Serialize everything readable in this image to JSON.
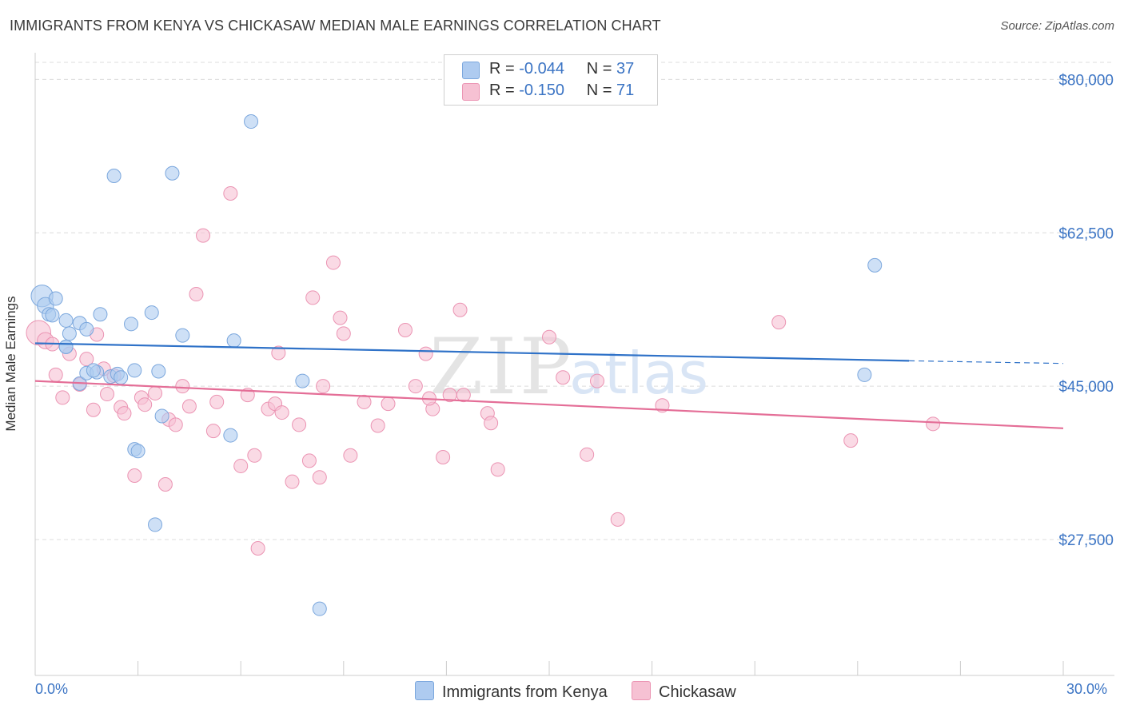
{
  "title": "IMMIGRANTS FROM KENYA VS CHICKASAW MEDIAN MALE EARNINGS CORRELATION CHART",
  "source": "Source: ZipAtlas.com",
  "watermark": {
    "zip": "ZIP",
    "atlas": "atlas"
  },
  "legend": {
    "rows": [
      {
        "r_label": "R =",
        "r_value": "-0.044",
        "n_label": "N =",
        "n_value": "37"
      },
      {
        "r_label": "R =",
        "r_value": "-0.150",
        "n_label": "N =",
        "n_value": "71"
      }
    ]
  },
  "bottom_legend": {
    "series1": "Immigrants from Kenya",
    "series2": "Chickasaw"
  },
  "colors": {
    "blue_fill": "#aecbf0",
    "blue_stroke": "#7ba7dd",
    "blue_line": "#2f72c8",
    "pink_fill": "#f6c1d3",
    "pink_stroke": "#eb94b3",
    "pink_line": "#e46e97",
    "axis_text": "#3b74c4"
  },
  "chart_data": {
    "type": "scatter",
    "title": "IMMIGRANTS FROM KENYA VS CHICKASAW MEDIAN MALE EARNINGS CORRELATION CHART",
    "xlabel": "",
    "ylabel": "Median Male Earnings",
    "xlim": [
      0,
      30
    ],
    "ylim": [
      12000,
      82500
    ],
    "x_tick_labels": [
      "0.0%",
      "30.0%"
    ],
    "y_ticks": [
      27500,
      45000,
      62500,
      80000
    ],
    "y_tick_labels": [
      "$27,500",
      "$45,000",
      "$62,500",
      "$80,000"
    ],
    "legend_position": "top-center",
    "series": [
      {
        "name": "Immigrants from Kenya",
        "r": -0.044,
        "n": 37,
        "trend": {
          "x": [
            0,
            25.5
          ],
          "y": [
            49900,
            47900
          ],
          "dashed_to": [
            30,
            47600
          ]
        },
        "points": [
          [
            0.2,
            55300,
            1.6
          ],
          [
            0.3,
            54200,
            1.2
          ],
          [
            0.4,
            53200,
            1.0
          ],
          [
            0.6,
            55000,
            1.0
          ],
          [
            0.5,
            53100,
            1.0
          ],
          [
            0.9,
            52500,
            1.0
          ],
          [
            0.9,
            49500,
            1.0
          ],
          [
            1.0,
            51000,
            1.0
          ],
          [
            1.3,
            52200,
            1.0
          ],
          [
            1.5,
            51500,
            1.0
          ],
          [
            1.9,
            53200,
            1.0
          ],
          [
            1.3,
            45300,
            1.0
          ],
          [
            1.5,
            46500,
            1.0
          ],
          [
            1.8,
            46600,
            1.0
          ],
          [
            2.2,
            46100,
            1.0
          ],
          [
            2.4,
            46400,
            1.0
          ],
          [
            2.5,
            46000,
            1.0
          ],
          [
            2.8,
            52100,
            1.0
          ],
          [
            2.9,
            46800,
            1.0
          ],
          [
            3.4,
            53400,
            1.0
          ],
          [
            3.6,
            46700,
            1.0
          ],
          [
            2.3,
            69000,
            1.0
          ],
          [
            4.0,
            69300,
            1.0
          ],
          [
            6.3,
            75200,
            1.0
          ],
          [
            4.3,
            50800,
            1.0
          ],
          [
            5.8,
            50200,
            1.0
          ],
          [
            3.7,
            41600,
            1.0
          ],
          [
            5.7,
            39400,
            1.0
          ],
          [
            2.9,
            37800,
            1.0
          ],
          [
            3.0,
            37600,
            1.0
          ],
          [
            3.5,
            29200,
            1.0
          ],
          [
            7.8,
            45600,
            1.0
          ],
          [
            8.3,
            19600,
            1.0
          ],
          [
            24.5,
            58800,
            1.0
          ],
          [
            24.2,
            46300,
            1.0
          ],
          [
            0.9,
            49500,
            1.0
          ],
          [
            1.7,
            46800,
            1.0
          ]
        ]
      },
      {
        "name": "Chickasaw",
        "r": -0.15,
        "n": 71,
        "trend": {
          "x": [
            0,
            30
          ],
          "y": [
            45600,
            40200
          ]
        },
        "points": [
          [
            0.1,
            51100,
            1.8
          ],
          [
            0.3,
            50200,
            1.2
          ],
          [
            0.5,
            49800,
            1.0
          ],
          [
            0.6,
            46300,
            1.0
          ],
          [
            0.8,
            43700,
            1.0
          ],
          [
            1.0,
            48700,
            1.0
          ],
          [
            1.3,
            45200,
            1.0
          ],
          [
            1.5,
            48100,
            1.0
          ],
          [
            1.7,
            42300,
            1.0
          ],
          [
            1.8,
            50900,
            1.0
          ],
          [
            2.1,
            44100,
            1.0
          ],
          [
            2.3,
            46200,
            1.0
          ],
          [
            2.5,
            42600,
            1.0
          ],
          [
            2.6,
            41900,
            1.0
          ],
          [
            2.9,
            34800,
            1.0
          ],
          [
            3.1,
            43700,
            1.0
          ],
          [
            3.2,
            42900,
            1.0
          ],
          [
            3.5,
            44200,
            1.0
          ],
          [
            3.8,
            33800,
            1.0
          ],
          [
            3.9,
            41200,
            1.0
          ],
          [
            4.1,
            40600,
            1.0
          ],
          [
            4.3,
            45000,
            1.0
          ],
          [
            4.5,
            42700,
            1.0
          ],
          [
            4.7,
            55500,
            1.0
          ],
          [
            4.9,
            62200,
            1.0
          ],
          [
            5.2,
            39900,
            1.0
          ],
          [
            5.3,
            43200,
            1.0
          ],
          [
            5.7,
            67000,
            1.0
          ],
          [
            6.0,
            35900,
            1.0
          ],
          [
            6.2,
            44000,
            1.0
          ],
          [
            6.4,
            37100,
            1.0
          ],
          [
            6.5,
            26500,
            1.0
          ],
          [
            6.8,
            42400,
            1.0
          ],
          [
            7.0,
            43000,
            1.0
          ],
          [
            7.1,
            48800,
            1.0
          ],
          [
            7.2,
            42000,
            1.0
          ],
          [
            7.5,
            34100,
            1.0
          ],
          [
            7.7,
            40600,
            1.0
          ],
          [
            8.0,
            36500,
            1.0
          ],
          [
            8.1,
            55100,
            1.0
          ],
          [
            8.3,
            34600,
            1.0
          ],
          [
            8.4,
            45000,
            1.0
          ],
          [
            8.7,
            59100,
            1.0
          ],
          [
            8.9,
            52800,
            1.0
          ],
          [
            9.0,
            51000,
            1.0
          ],
          [
            9.2,
            37100,
            1.0
          ],
          [
            9.6,
            43200,
            1.0
          ],
          [
            10.0,
            40500,
            1.0
          ],
          [
            10.3,
            43000,
            1.0
          ],
          [
            10.8,
            51400,
            1.0
          ],
          [
            11.1,
            45000,
            1.0
          ],
          [
            11.4,
            48700,
            1.0
          ],
          [
            11.6,
            42400,
            1.0
          ],
          [
            11.9,
            36900,
            1.0
          ],
          [
            12.1,
            44000,
            1.0
          ],
          [
            12.4,
            53700,
            1.0
          ],
          [
            12.5,
            44000,
            1.0
          ],
          [
            13.2,
            41900,
            1.0
          ],
          [
            13.3,
            40800,
            1.0
          ],
          [
            13.5,
            35500,
            1.0
          ],
          [
            15.0,
            50600,
            1.0
          ],
          [
            15.4,
            46000,
            1.0
          ],
          [
            16.1,
            37200,
            1.0
          ],
          [
            16.4,
            45600,
            1.0
          ],
          [
            17.0,
            29800,
            1.0
          ],
          [
            18.3,
            42800,
            1.0
          ],
          [
            21.7,
            52300,
            1.0
          ],
          [
            23.8,
            38800,
            1.0
          ],
          [
            26.2,
            40700,
            1.0
          ],
          [
            11.5,
            43600,
            1.0
          ],
          [
            2.0,
            47000,
            1.0
          ]
        ]
      }
    ]
  }
}
